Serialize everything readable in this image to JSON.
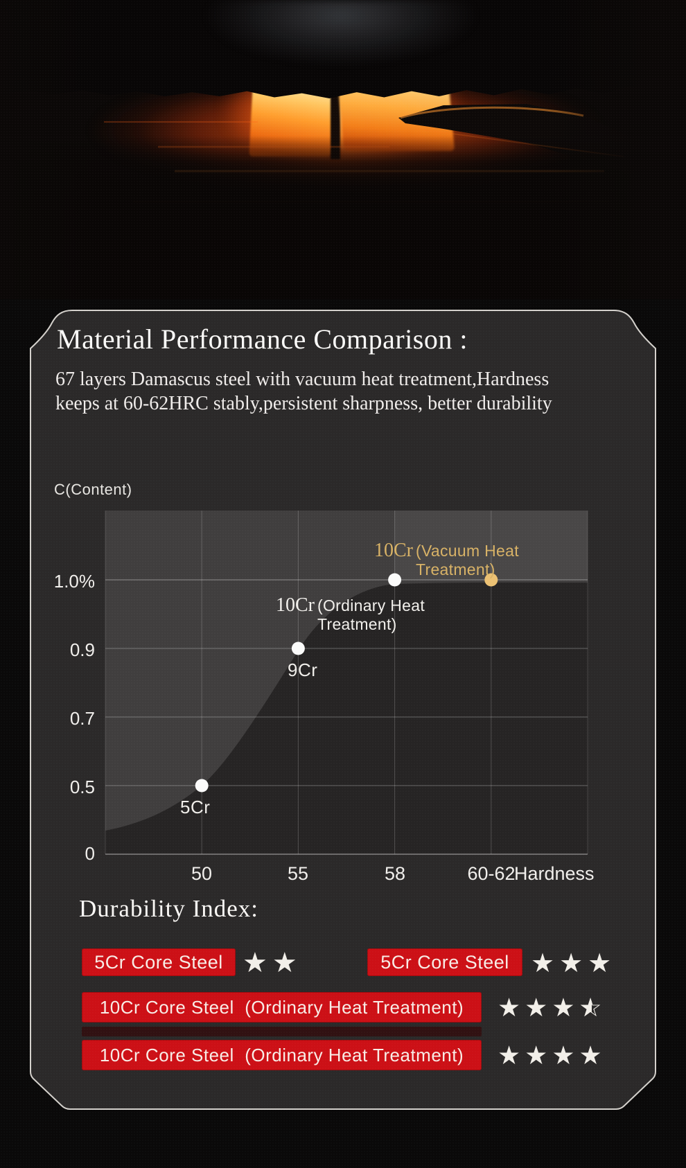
{
  "page": {
    "background": "#0a0909"
  },
  "hero": {
    "photo_alt": "glowing steel billets heating inside a dark forge furnace with tongs"
  },
  "panel": {
    "title": "Material Performance Comparison :",
    "subtitle_lines": [
      "67 layers Damascus steel with vacuum heat treatment,Hardness",
      "keeps at 60-62HRC stably,persistent sharpness, better durability"
    ],
    "border_color": "#d4d1cc",
    "background": "#2b2929"
  },
  "chart_data": {
    "type": "scatter",
    "title": "",
    "ylabel": "C(Content)",
    "xlabel": "Hardness",
    "x_tick_labels": [
      "50",
      "55",
      "58",
      "60-62"
    ],
    "y_tick_labels": [
      "1.0%",
      "0.9",
      "0.7",
      "0.5",
      "0"
    ],
    "y_tick_values": [
      1.0,
      0.9,
      0.7,
      0.5,
      0
    ],
    "grid": true,
    "legend_position": "none",
    "area_series": {
      "name": "carbon content vs hardness",
      "shape": "sigmoid: low near (50, 0.45), steep rise through (55, 0.9), plateau at 1.0 from 58 onward",
      "fill": "#262424"
    },
    "points": [
      {
        "name": "5Cr",
        "x": "50",
        "y": 0.5,
        "dot_color": "#fbfbfa"
      },
      {
        "name": "9Cr",
        "x": "55",
        "y": 0.9,
        "dot_color": "#fbfbfa"
      },
      {
        "name": "10Cr",
        "note": "(Ordinary Heat Treatment)",
        "x": "58",
        "y": 1.0,
        "dot_color": "#fbfbfa"
      },
      {
        "name": "10Cr",
        "note": "(Vacuum Heat Treatment)",
        "x": "60-62",
        "y": 1.0,
        "dot_color": "#ecc173",
        "label_color": "#d8b266"
      }
    ]
  },
  "durability": {
    "title": "Durability Index:",
    "bar_color": "#cc1016",
    "star_color": "#f2efe9",
    "rows": [
      {
        "items": [
          {
            "label": "5Cr Core Steel",
            "stars": 2
          },
          {
            "label": "5Cr Core Steel",
            "stars": 3
          }
        ]
      },
      {
        "items": [
          {
            "label": "10Cr Core Steel  (Ordinary Heat Treatment)",
            "stars": 3.5
          }
        ]
      },
      {
        "items": [
          {
            "label": "10Cr Core Steel  (Ordinary Heat Treatment)",
            "stars": 4
          }
        ]
      }
    ]
  }
}
